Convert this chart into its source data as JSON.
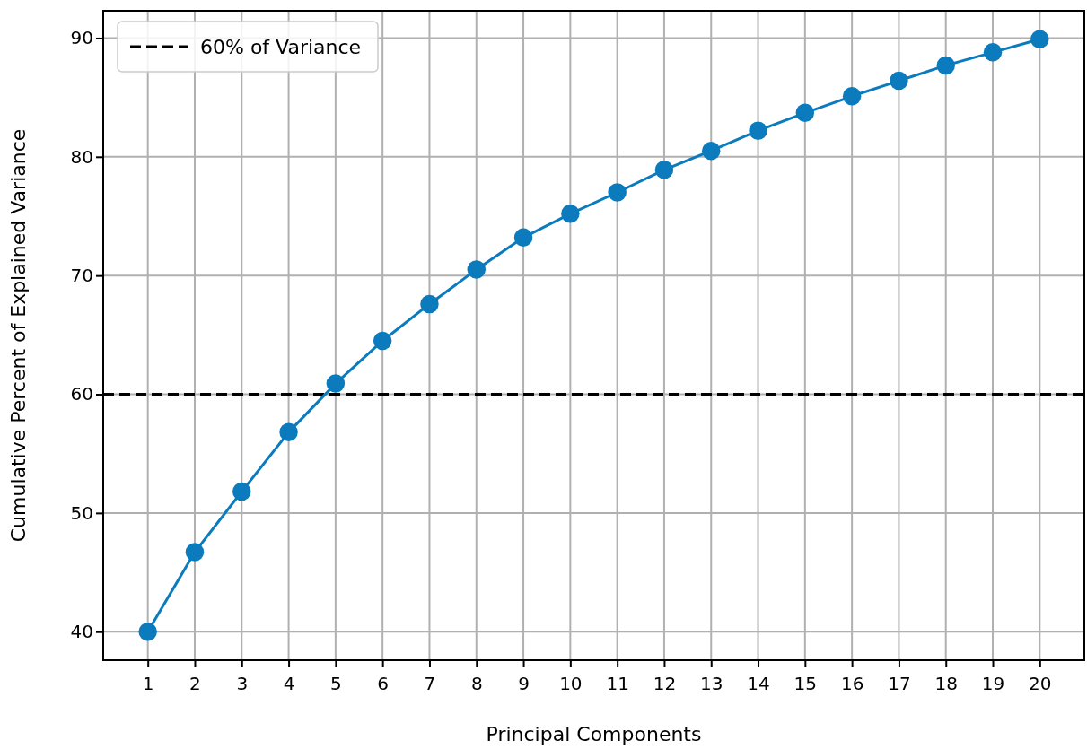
{
  "chart_data": {
    "type": "line",
    "xlabel": "Principal Components",
    "ylabel": "Cumulative Percent of Explained Variance",
    "x": [
      1,
      2,
      3,
      4,
      5,
      6,
      7,
      8,
      9,
      10,
      11,
      12,
      13,
      14,
      15,
      16,
      17,
      18,
      19,
      20
    ],
    "xlim": [
      0.05,
      20.95
    ],
    "xticks": [
      1,
      2,
      3,
      4,
      5,
      6,
      7,
      8,
      9,
      10,
      11,
      12,
      13,
      14,
      15,
      16,
      17,
      18,
      19,
      20
    ],
    "series": [
      {
        "color": "#0b7bbd",
        "values": [
          40.0,
          46.7,
          51.8,
          56.8,
          60.9,
          64.5,
          67.6,
          70.5,
          73.2,
          75.2,
          77.0,
          78.9,
          80.5,
          82.2,
          83.7,
          85.1,
          86.4,
          87.7,
          88.8,
          89.9
        ]
      }
    ],
    "ylim": [
      37.6,
      92.3
    ],
    "yticks": [
      40,
      50,
      60,
      70,
      80,
      90
    ],
    "ref_lines": [
      {
        "axis": "y",
        "value": 60,
        "label": "60% of Variance",
        "color": "#000000",
        "line_style": "dashed"
      }
    ],
    "grid": true,
    "legend": "top left",
    "marker": "circle",
    "line_style": "solid"
  }
}
